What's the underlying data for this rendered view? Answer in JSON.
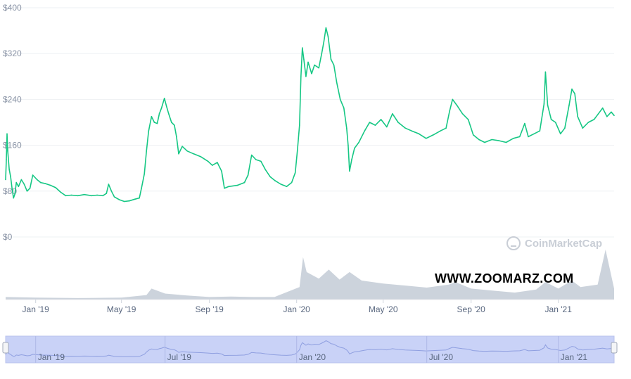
{
  "chart_data": {
    "type": "line",
    "title": "",
    "xlabel": "",
    "ylabel": "",
    "y_ticks": [
      "$400",
      "$320",
      "$240",
      "$160",
      "$80",
      "$0"
    ],
    "y_tick_values": [
      400,
      320,
      240,
      160,
      80,
      0
    ],
    "ylim": [
      0,
      400
    ],
    "x_ticks": [
      "Jan '19",
      "May '19",
      "Sep '19",
      "Jan '20",
      "May '20",
      "Sep '20",
      "Jan '21"
    ],
    "x_tick_dates": [
      "2019-01-01",
      "2019-05-01",
      "2019-09-01",
      "2020-01-01",
      "2020-05-01",
      "2020-09-01",
      "2021-01-01"
    ],
    "xlim": [
      "2018-11-20",
      "2021-03-20"
    ],
    "grid": true,
    "series": [
      {
        "color": "#16c784",
        "points": [
          [
            "2018-11-20",
            100
          ],
          [
            "2018-11-21",
            135
          ],
          [
            "2018-11-22",
            180
          ],
          [
            "2018-11-23",
            150
          ],
          [
            "2018-11-25",
            118
          ],
          [
            "2018-11-27",
            105
          ],
          [
            "2018-11-29",
            85
          ],
          [
            "2018-12-01",
            68
          ],
          [
            "2018-12-03",
            75
          ],
          [
            "2018-12-05",
            95
          ],
          [
            "2018-12-08",
            88
          ],
          [
            "2018-12-12",
            100
          ],
          [
            "2018-12-16",
            92
          ],
          [
            "2018-12-20",
            80
          ],
          [
            "2018-12-24",
            85
          ],
          [
            "2018-12-28",
            108
          ],
          [
            "2019-01-03",
            100
          ],
          [
            "2019-01-08",
            95
          ],
          [
            "2019-01-15",
            93
          ],
          [
            "2019-01-22",
            90
          ],
          [
            "2019-01-29",
            86
          ],
          [
            "2019-02-05",
            78
          ],
          [
            "2019-02-12",
            72
          ],
          [
            "2019-02-20",
            73
          ],
          [
            "2019-03-01",
            72
          ],
          [
            "2019-03-10",
            74
          ],
          [
            "2019-03-20",
            72
          ],
          [
            "2019-03-28",
            73
          ],
          [
            "2019-04-05",
            72
          ],
          [
            "2019-04-10",
            76
          ],
          [
            "2019-04-13",
            92
          ],
          [
            "2019-04-17",
            80
          ],
          [
            "2019-04-21",
            70
          ],
          [
            "2019-04-28",
            65
          ],
          [
            "2019-05-05",
            62
          ],
          [
            "2019-05-12",
            63
          ],
          [
            "2019-05-20",
            66
          ],
          [
            "2019-05-26",
            68
          ],
          [
            "2019-05-29",
            85
          ],
          [
            "2019-06-02",
            110
          ],
          [
            "2019-06-05",
            150
          ],
          [
            "2019-06-08",
            185
          ],
          [
            "2019-06-12",
            210
          ],
          [
            "2019-06-16",
            200
          ],
          [
            "2019-06-20",
            198
          ],
          [
            "2019-06-23",
            215
          ],
          [
            "2019-06-26",
            225
          ],
          [
            "2019-06-30",
            242
          ],
          [
            "2019-07-03",
            228
          ],
          [
            "2019-07-06",
            215
          ],
          [
            "2019-07-10",
            200
          ],
          [
            "2019-07-14",
            195
          ],
          [
            "2019-07-17",
            175
          ],
          [
            "2019-07-20",
            145
          ],
          [
            "2019-07-25",
            158
          ],
          [
            "2019-08-01",
            150
          ],
          [
            "2019-08-10",
            145
          ],
          [
            "2019-08-20",
            140
          ],
          [
            "2019-08-30",
            132
          ],
          [
            "2019-09-05",
            125
          ],
          [
            "2019-09-12",
            130
          ],
          [
            "2019-09-18",
            115
          ],
          [
            "2019-09-22",
            85
          ],
          [
            "2019-09-28",
            88
          ],
          [
            "2019-10-10",
            90
          ],
          [
            "2019-10-20",
            95
          ],
          [
            "2019-10-25",
            108
          ],
          [
            "2019-10-30",
            143
          ],
          [
            "2019-11-05",
            135
          ],
          [
            "2019-11-12",
            132
          ],
          [
            "2019-11-18",
            118
          ],
          [
            "2019-11-25",
            105
          ],
          [
            "2019-12-02",
            98
          ],
          [
            "2019-12-10",
            92
          ],
          [
            "2019-12-18",
            88
          ],
          [
            "2019-12-25",
            95
          ],
          [
            "2019-12-30",
            112
          ],
          [
            "2020-01-02",
            150
          ],
          [
            "2020-01-05",
            195
          ],
          [
            "2020-01-07",
            280
          ],
          [
            "2020-01-09",
            330
          ],
          [
            "2020-01-11",
            310
          ],
          [
            "2020-01-14",
            280
          ],
          [
            "2020-01-17",
            305
          ],
          [
            "2020-01-22",
            285
          ],
          [
            "2020-01-26",
            300
          ],
          [
            "2020-02-01",
            295
          ],
          [
            "2020-02-05",
            320
          ],
          [
            "2020-02-08",
            340
          ],
          [
            "2020-02-11",
            365
          ],
          [
            "2020-02-14",
            350
          ],
          [
            "2020-02-18",
            310
          ],
          [
            "2020-02-22",
            300
          ],
          [
            "2020-02-26",
            270
          ],
          [
            "2020-03-02",
            240
          ],
          [
            "2020-03-07",
            225
          ],
          [
            "2020-03-11",
            190
          ],
          [
            "2020-03-13",
            160
          ],
          [
            "2020-03-15",
            115
          ],
          [
            "2020-03-18",
            135
          ],
          [
            "2020-03-22",
            155
          ],
          [
            "2020-03-28",
            165
          ],
          [
            "2020-04-05",
            185
          ],
          [
            "2020-04-12",
            200
          ],
          [
            "2020-04-20",
            195
          ],
          [
            "2020-04-28",
            205
          ],
          [
            "2020-05-06",
            192
          ],
          [
            "2020-05-14",
            215
          ],
          [
            "2020-05-22",
            200
          ],
          [
            "2020-06-01",
            190
          ],
          [
            "2020-06-10",
            185
          ],
          [
            "2020-06-20",
            180
          ],
          [
            "2020-06-30",
            172
          ],
          [
            "2020-07-10",
            178
          ],
          [
            "2020-07-20",
            185
          ],
          [
            "2020-07-28",
            190
          ],
          [
            "2020-08-02",
            220
          ],
          [
            "2020-08-06",
            240
          ],
          [
            "2020-08-12",
            230
          ],
          [
            "2020-08-20",
            215
          ],
          [
            "2020-08-28",
            205
          ],
          [
            "2020-09-04",
            178
          ],
          [
            "2020-09-12",
            170
          ],
          [
            "2020-09-20",
            165
          ],
          [
            "2020-09-30",
            170
          ],
          [
            "2020-10-10",
            168
          ],
          [
            "2020-10-20",
            165
          ],
          [
            "2020-10-30",
            172
          ],
          [
            "2020-11-08",
            175
          ],
          [
            "2020-11-15",
            198
          ],
          [
            "2020-11-20",
            175
          ],
          [
            "2020-11-28",
            180
          ],
          [
            "2020-12-06",
            185
          ],
          [
            "2020-12-12",
            232
          ],
          [
            "2020-12-14",
            288
          ],
          [
            "2020-12-17",
            230
          ],
          [
            "2020-12-22",
            205
          ],
          [
            "2020-12-28",
            200
          ],
          [
            "2021-01-04",
            180
          ],
          [
            "2021-01-10",
            190
          ],
          [
            "2021-01-16",
            230
          ],
          [
            "2021-01-20",
            258
          ],
          [
            "2021-01-24",
            250
          ],
          [
            "2021-01-28",
            210
          ],
          [
            "2021-02-04",
            190
          ],
          [
            "2021-02-12",
            200
          ],
          [
            "2021-02-20",
            205
          ],
          [
            "2021-02-26",
            215
          ],
          [
            "2021-03-04",
            225
          ],
          [
            "2021-03-10",
            210
          ],
          [
            "2021-03-16",
            218
          ],
          [
            "2021-03-20",
            212
          ]
        ]
      }
    ],
    "volume": {
      "color": "#c7ced8",
      "points": [
        [
          "2018-11-20",
          0.05
        ],
        [
          "2019-01-01",
          0.04
        ],
        [
          "2019-03-01",
          0.03
        ],
        [
          "2019-05-01",
          0.04
        ],
        [
          "2019-06-05",
          0.09
        ],
        [
          "2019-06-12",
          0.22
        ],
        [
          "2019-07-01",
          0.12
        ],
        [
          "2019-08-01",
          0.08
        ],
        [
          "2019-09-01",
          0.05
        ],
        [
          "2019-10-01",
          0.06
        ],
        [
          "2019-11-01",
          0.05
        ],
        [
          "2019-12-01",
          0.05
        ],
        [
          "2020-01-05",
          0.25
        ],
        [
          "2020-01-10",
          0.85
        ],
        [
          "2020-01-15",
          0.55
        ],
        [
          "2020-02-01",
          0.42
        ],
        [
          "2020-02-15",
          0.6
        ],
        [
          "2020-03-01",
          0.4
        ],
        [
          "2020-03-15",
          0.55
        ],
        [
          "2020-04-01",
          0.38
        ],
        [
          "2020-05-01",
          0.32
        ],
        [
          "2020-06-01",
          0.28
        ],
        [
          "2020-07-01",
          0.24
        ],
        [
          "2020-08-01",
          0.3
        ],
        [
          "2020-08-10",
          0.35
        ],
        [
          "2020-09-01",
          0.22
        ],
        [
          "2020-10-01",
          0.18
        ],
        [
          "2020-11-01",
          0.14
        ],
        [
          "2020-12-01",
          0.2
        ],
        [
          "2020-12-14",
          0.35
        ],
        [
          "2021-01-01",
          0.22
        ],
        [
          "2021-01-20",
          0.38
        ],
        [
          "2021-02-01",
          0.25
        ],
        [
          "2021-02-25",
          0.3
        ],
        [
          "2021-03-08",
          1.0
        ],
        [
          "2021-03-20",
          0.22
        ]
      ]
    },
    "navigator": {
      "x_ticks": [
        "Jan '19",
        "Jul '19",
        "Jan '20",
        "Jul '20",
        "Jan '21"
      ],
      "x_tick_dates": [
        "2019-01-01",
        "2019-07-01",
        "2020-01-01",
        "2020-07-01",
        "2021-01-01"
      ]
    }
  },
  "watermarks": {
    "brand": "CoinMarketCap",
    "site": "WWW.ZOOMARZ.COM"
  }
}
